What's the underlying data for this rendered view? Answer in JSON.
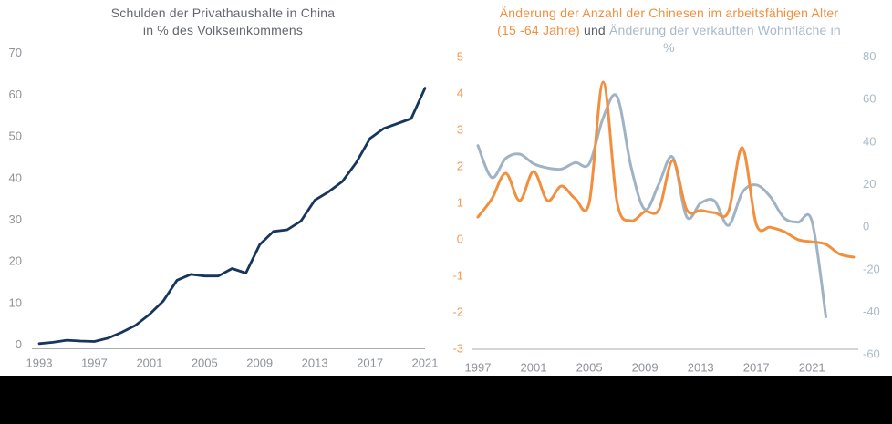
{
  "colors": {
    "debt_line": "#17365d",
    "workforce_line": "#f28f3f",
    "floorspace_line": "#a0b3c5",
    "workforce_ticks": "#f49a51",
    "floorspace_ticks": "#a9bbca",
    "tick_gray": "#8e9399",
    "axis_line": "#a7acb1",
    "title_gray": "#63676d",
    "footer": "#000000"
  },
  "charts": {
    "left": {
      "title_line1": "Schulden der Privathaushalte in China",
      "title_line2": "in % des Volkseinkommens"
    },
    "right": {
      "title_orange_line1": "Änderung der Anzahl der Chinesen im arbeitsfähigen Alter",
      "title_orange_line2": "(15 -64 Jahre)",
      "title_connector": "und",
      "title_slate_line2": "Änderung der verkauften Wohnfläche in",
      "title_slate_line3": "%"
    }
  },
  "chart_data": [
    {
      "type": "line",
      "title": "Schulden der Privathaushalte in China in % des Volkseinkommens",
      "xlabel": "",
      "ylabel": "",
      "ylim": [
        0,
        70
      ],
      "grid": false,
      "legend": "none",
      "x_ticks": [
        1993,
        1997,
        2001,
        2005,
        2009,
        2013,
        2017,
        2021
      ],
      "y_ticks": [
        0,
        10,
        20,
        30,
        40,
        50,
        60,
        70
      ],
      "series": [
        {
          "key": "debt-line",
          "name": "Schulden der Privathaushalte in China",
          "color": "#17365d",
          "smooth": false,
          "x": [
            1993,
            1994,
            1995,
            1996,
            1997,
            1998,
            1999,
            2000,
            2001,
            2002,
            2003,
            2004,
            2005,
            2006,
            2007,
            2008,
            2009,
            2010,
            2011,
            2012,
            2013,
            2014,
            2015,
            2016,
            2017,
            2018,
            2019,
            2020,
            2021
          ],
          "values": [
            0.6,
            0.9,
            1.4,
            1.2,
            1.1,
            1.9,
            3.3,
            5.0,
            7.6,
            10.8,
            15.8,
            17.2,
            16.8,
            16.8,
            18.6,
            17.5,
            24.3,
            27.5,
            27.9,
            30.0,
            35.0,
            37.0,
            39.5,
            44.0,
            49.8,
            52.2,
            53.4,
            54.6,
            61.9
          ]
        }
      ]
    },
    {
      "type": "line",
      "title": "Änderung der Anzahl der Chinesen im arbeitsfähigen Alter (15 -64 Jahre) und Änderung der verkauften Wohnfläche in %",
      "xlabel": "",
      "grid": false,
      "legend": "in-title",
      "x_ticks": [
        1997,
        2001,
        2005,
        2009,
        2013,
        2017,
        2021
      ],
      "left_axis": {
        "ticks": [
          5,
          4,
          3,
          2,
          1,
          0,
          -1,
          -2,
          -3
        ],
        "range": [
          -3,
          5
        ]
      },
      "right_axis": {
        "ticks": [
          80,
          60,
          40,
          20,
          0,
          -20,
          -40,
          -60
        ],
        "range": [
          -60,
          80
        ]
      },
      "series": [
        {
          "key": "workforce-line",
          "name": "Änderung der Anzahl der Chinesen im arbeitsfähigen Alter (15 -64 Jahre)",
          "axis": "left",
          "color": "#f28f3f",
          "smooth": true,
          "x": [
            1997,
            1998,
            1999,
            2000,
            2001,
            2002,
            2003,
            2004,
            2005,
            2006,
            2007,
            2008,
            2009,
            2010,
            2011,
            2012,
            2013,
            2014,
            2015,
            2016,
            2017,
            2018,
            2019,
            2020,
            2021,
            2022,
            2023,
            2024
          ],
          "values": [
            0.6,
            1.1,
            1.8,
            1.05,
            1.85,
            1.05,
            1.45,
            1.1,
            1.0,
            4.3,
            1.0,
            0.5,
            0.75,
            0.8,
            2.15,
            0.8,
            0.78,
            0.72,
            0.75,
            2.5,
            0.4,
            0.32,
            0.2,
            -0.02,
            -0.08,
            -0.15,
            -0.42,
            -0.5
          ]
        },
        {
          "key": "floorspace-line",
          "name": "Änderung der verkauften Wohnfläche in %",
          "axis": "right",
          "color": "#a0b3c5",
          "smooth": true,
          "x": [
            1997,
            1998,
            1999,
            2000,
            2001,
            2002,
            2003,
            2004,
            2005,
            2006,
            2007,
            2008,
            2009,
            2010,
            2011,
            2012,
            2013,
            2014,
            2015,
            2016,
            2017,
            2018,
            2019,
            2020,
            2021,
            2022
          ],
          "values": [
            37,
            22,
            31,
            33,
            28.5,
            26.5,
            26,
            29,
            28.5,
            50,
            60,
            27,
            7,
            19,
            31.5,
            3.5,
            10,
            11,
            -0.5,
            15,
            18.5,
            13,
            3,
            1,
            1.5,
            -43.5
          ]
        }
      ]
    }
  ]
}
